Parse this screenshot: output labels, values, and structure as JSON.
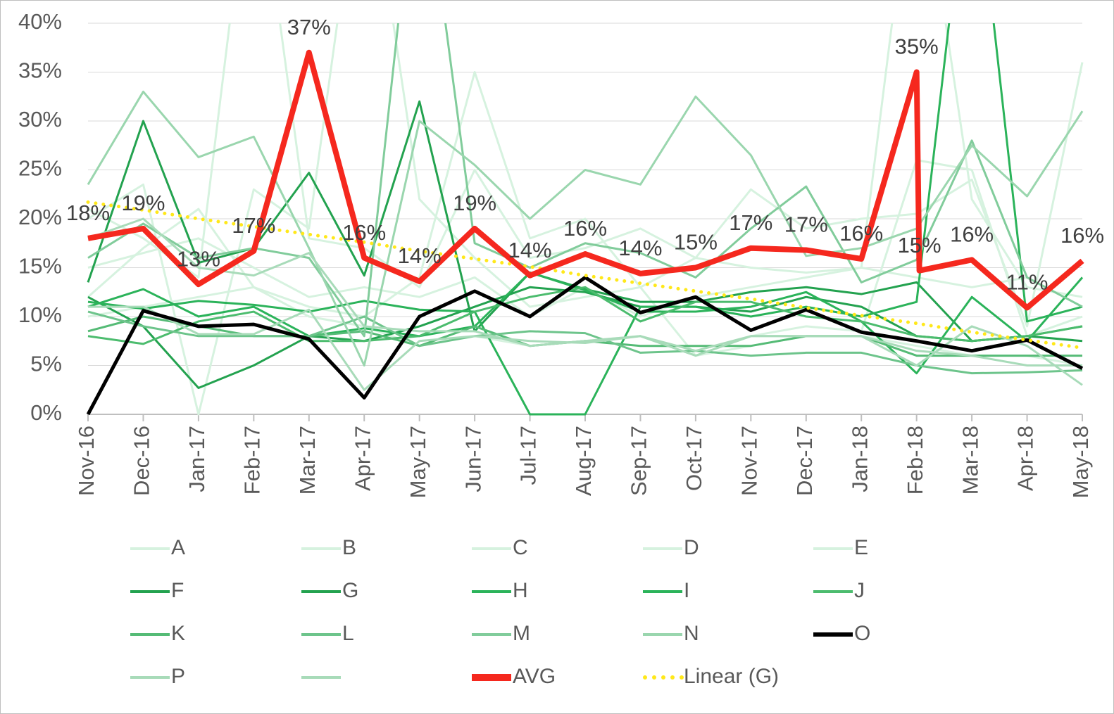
{
  "chart_data": {
    "type": "line",
    "x": [
      0,
      1,
      2,
      3,
      4,
      5,
      6,
      7,
      8,
      9,
      10,
      11,
      12,
      13,
      14,
      15,
      16,
      17,
      18
    ],
    "xlim": [
      0,
      18
    ],
    "xticks": [
      {
        "value": 0,
        "label": "Nov-16"
      },
      {
        "value": 1,
        "label": "Dec-16"
      },
      {
        "value": 2,
        "label": "Jan-17"
      },
      {
        "value": 3,
        "label": "Feb-17"
      },
      {
        "value": 4,
        "label": "Mar-17"
      },
      {
        "value": 5,
        "label": "Apr-17"
      },
      {
        "value": 6,
        "label": "May-17"
      },
      {
        "value": 7,
        "label": "Jun-17"
      },
      {
        "value": 8,
        "label": "Jul-17"
      },
      {
        "value": 9,
        "label": "Aug-17"
      },
      {
        "value": 10,
        "label": "Sep-17"
      },
      {
        "value": 11,
        "label": "Oct-17"
      },
      {
        "value": 12,
        "label": "Nov-17"
      },
      {
        "value": 13,
        "label": "Dec-17"
      },
      {
        "value": 14,
        "label": "Jan-18"
      },
      {
        "value": 15,
        "label": "Feb-18"
      },
      {
        "value": 16,
        "label": "Mar-18"
      },
      {
        "value": 17,
        "label": "Apr-18"
      },
      {
        "value": 18,
        "label": "May-18"
      }
    ],
    "ylim": [
      0,
      40
    ],
    "yticks": [
      {
        "value": 0,
        "label": "0%"
      },
      {
        "value": 5,
        "label": "5%"
      },
      {
        "value": 10,
        "label": "10%"
      },
      {
        "value": 15,
        "label": "15%"
      },
      {
        "value": 20,
        "label": "20%"
      },
      {
        "value": 25,
        "label": "25%"
      },
      {
        "value": 30,
        "label": "30%"
      },
      {
        "value": 35,
        "label": "35%"
      },
      {
        "value": 40,
        "label": "40%"
      }
    ],
    "series": [
      {
        "name": "A",
        "color": "#d6f2df",
        "values": [
          12,
          17,
          21,
          13,
          11,
          10,
          14,
          35,
          18,
          20,
          13,
          16,
          23,
          19,
          20,
          20.5,
          24,
          9,
          36
        ]
      },
      {
        "name": "B",
        "color": "#d6f2df",
        "values": [
          21,
          18,
          14,
          60,
          18,
          17,
          13,
          25,
          16,
          17,
          19,
          16,
          15,
          14.5,
          15,
          60,
          22,
          13,
          12
        ]
      },
      {
        "name": "C",
        "color": "#d6f2df",
        "values": [
          20,
          23.5,
          0,
          23,
          19,
          60,
          22,
          16,
          11,
          12,
          13,
          6,
          8,
          9,
          8.5,
          26,
          25,
          8,
          10
        ]
      },
      {
        "name": "D",
        "color": "#d6f2df",
        "values": [
          15,
          16.5,
          18,
          15,
          12,
          13,
          12,
          14,
          10,
          13,
          10,
          12,
          13,
          14,
          15,
          14,
          13,
          14,
          11
        ]
      },
      {
        "name": "E",
        "color": "#d6f2df",
        "values": [
          10,
          11,
          12,
          13,
          10,
          9,
          7,
          8,
          7,
          7.5,
          8,
          6,
          7,
          8,
          8,
          7,
          6,
          6,
          5
        ]
      },
      {
        "name": "F",
        "color": "#23a24f",
        "values": [
          13.5,
          30,
          15.5,
          17,
          24.7,
          14.2,
          32,
          8.5,
          14.5,
          12.8,
          11.5,
          11.5,
          12.5,
          13,
          12.3,
          13.5,
          7.5,
          8,
          9
        ]
      },
      {
        "name": "G",
        "color": "#23a24f",
        "values": [
          12,
          9,
          2.7,
          5,
          8,
          7.5,
          9,
          11,
          13,
          12.5,
          11,
          11,
          10.5,
          12,
          11,
          8,
          7.5,
          8,
          7.5
        ]
      },
      {
        "name": "H",
        "color": "#2bb35a",
        "values": [
          11,
          12.8,
          10,
          11,
          8,
          8.8,
          8,
          9,
          14.5,
          12.7,
          10.5,
          10.5,
          11,
          12.5,
          9.5,
          4.2,
          12,
          7.5,
          14
        ]
      },
      {
        "name": "I",
        "color": "#2bb35a",
        "values": [
          11.5,
          10.8,
          11.6,
          11.2,
          10.5,
          11.6,
          10.7,
          10.5,
          0,
          0,
          11,
          11,
          10,
          11,
          10,
          11.5,
          60,
          9.5,
          11
        ]
      },
      {
        "name": "J",
        "color": "#4cbc6e",
        "values": [
          8,
          7.2,
          9.5,
          10.5,
          7.5,
          7.5,
          8,
          10.5,
          12,
          13,
          9.5,
          11.5,
          11.5,
          10,
          9.5,
          8,
          7.5,
          8,
          9
        ]
      },
      {
        "name": "K",
        "color": "#55bb76",
        "values": [
          8.5,
          10,
          9,
          8,
          8,
          8.5,
          7,
          9,
          7,
          7.5,
          7,
          7,
          7,
          8,
          8,
          6,
          6,
          6,
          6
        ]
      },
      {
        "name": "L",
        "color": "#6dc48b",
        "values": [
          10.5,
          9,
          8,
          8,
          8,
          10,
          7,
          8,
          8.5,
          8.3,
          6.3,
          6.5,
          6,
          6.3,
          6.3,
          5,
          4.2,
          4.3,
          4.5
        ]
      },
      {
        "name": "M",
        "color": "#81cc9b",
        "values": [
          16,
          19.5,
          16,
          17,
          16,
          8,
          60,
          17.5,
          15,
          17.5,
          16.5,
          14,
          19,
          23.3,
          13.5,
          15.8,
          28,
          14,
          11
        ]
      },
      {
        "name": "N",
        "color": "#9ad6ae",
        "values": [
          23.5,
          33,
          26.3,
          28.4,
          17,
          5,
          30,
          25.5,
          20,
          25,
          23.5,
          32.5,
          26.5,
          16.2,
          17,
          19,
          27.5,
          22.3,
          31
        ]
      },
      {
        "name": "O",
        "color": "#000000",
        "values": [
          0,
          10.6,
          9,
          9.2,
          7.7,
          1.7,
          10,
          12.6,
          10,
          14,
          10.4,
          12,
          8.6,
          10.7,
          8.4,
          7.5,
          6.5,
          7.6,
          4.7
        ]
      },
      {
        "name": "P",
        "color": "#a8dbb9",
        "values": [
          11,
          11,
          8.2,
          8.2,
          10.7,
          2.5,
          7.5,
          8,
          7.5,
          7.3,
          8,
          6,
          8,
          8,
          8,
          6.5,
          6,
          5,
          5
        ]
      },
      {
        "color": "#a8dbb9",
        "values": [
          18,
          20,
          15,
          14.2,
          16.5,
          9,
          8.5,
          8.5,
          7,
          7.5,
          8,
          6.5,
          8,
          8,
          8,
          5,
          9,
          7,
          3
        ]
      },
      {
        "name": "AVG",
        "color": "#f5281e",
        "x": [
          0,
          1,
          2,
          3,
          4,
          5,
          6,
          7,
          8,
          9,
          10,
          11,
          12,
          13,
          14,
          15,
          15.05,
          16,
          17,
          18
        ],
        "values": [
          18,
          19,
          13.3,
          16.7,
          37,
          16,
          13.6,
          19,
          14.2,
          16.4,
          14.4,
          15,
          17,
          16.8,
          15.9,
          35,
          14.7,
          15.8,
          10.9,
          15.7
        ],
        "value_labels": [
          "18%",
          "19%",
          "13%",
          "17%",
          "37%",
          "16%",
          "14%",
          "19%",
          "14%",
          "16%",
          "14%",
          "15%",
          "17%",
          "17%",
          "16%",
          "35%",
          "15%",
          "16%",
          "11%",
          "16%"
        ]
      },
      {
        "name": "Linear  (G)",
        "color": "#ffe81a",
        "dash": "dotted",
        "values": [
          21.7,
          20.9,
          20.0,
          19.2,
          18.4,
          17.6,
          16.7,
          15.9,
          15.1,
          14.2,
          13.4,
          12.6,
          11.8,
          10.9,
          10.1,
          9.3,
          8.4,
          7.6,
          6.8
        ]
      }
    ]
  }
}
